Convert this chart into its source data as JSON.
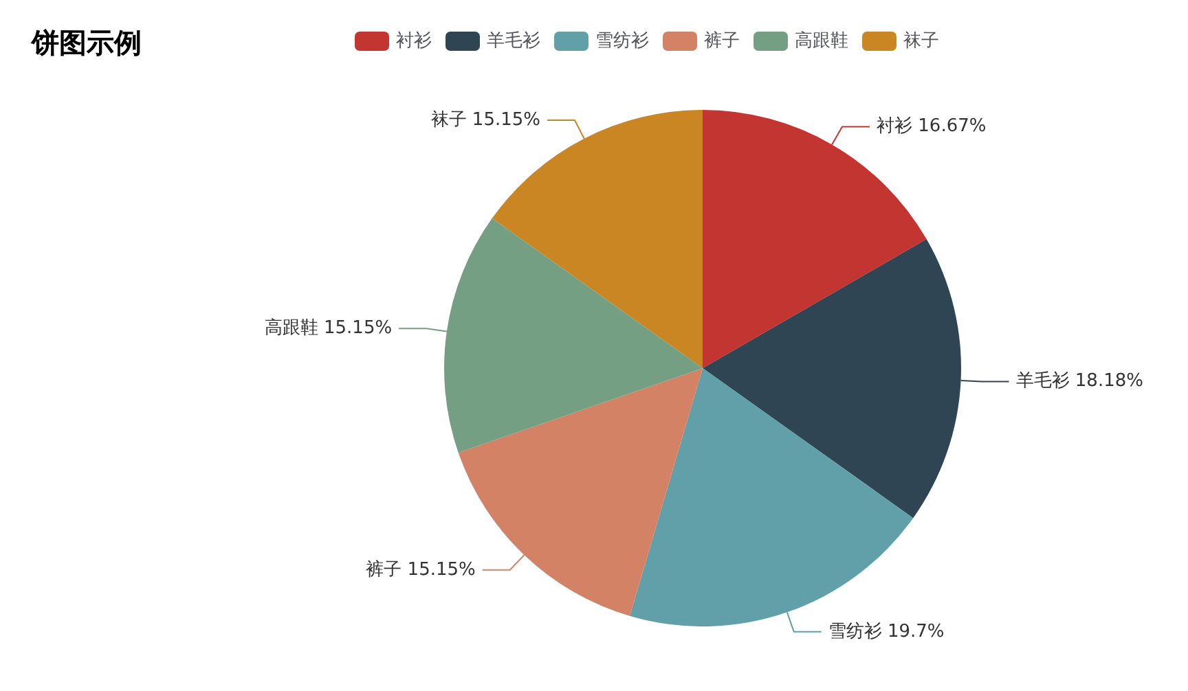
{
  "chart_data": {
    "type": "pie",
    "title": "饼图示例",
    "categories": [
      "衬衫",
      "羊毛衫",
      "雪纺衫",
      "裤子",
      "高跟鞋",
      "袜子"
    ],
    "values": [
      16.67,
      18.18,
      19.7,
      15.15,
      15.15,
      15.15
    ],
    "value_labels": [
      "16.67%",
      "18.18%",
      "19.7%",
      "15.15%",
      "15.15%",
      "15.15%"
    ],
    "colors": [
      "#c23531",
      "#2f4554",
      "#61a0a8",
      "#d48265",
      "#749f83",
      "#ca8622"
    ],
    "legend": "top"
  }
}
